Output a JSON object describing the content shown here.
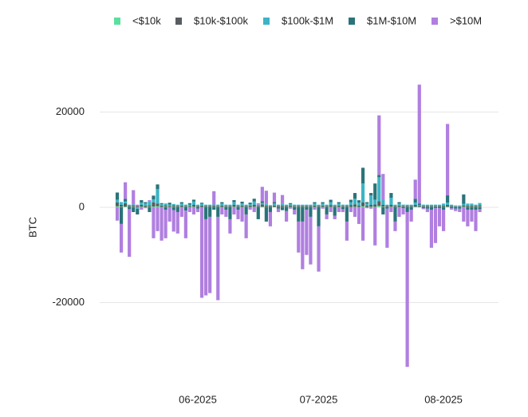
{
  "chart_data": {
    "type": "stacked_bar",
    "y_label": "BTC",
    "categories": [
      null,
      null,
      null,
      null,
      null,
      null,
      null,
      null,
      null,
      null,
      null,
      null,
      null,
      null,
      null,
      null,
      null,
      null,
      null,
      null,
      "06-2025",
      null,
      null,
      null,
      null,
      null,
      null,
      null,
      null,
      null,
      null,
      null,
      null,
      null,
      null,
      null,
      null,
      null,
      null,
      null,
      null,
      null,
      null,
      null,
      null,
      null,
      null,
      null,
      null,
      null,
      "07-2025",
      null,
      null,
      null,
      null,
      null,
      null,
      null,
      null,
      null,
      null,
      null,
      null,
      null,
      null,
      null,
      null,
      null,
      null,
      null,
      null,
      null,
      null,
      null,
      null,
      null,
      null,
      null,
      null,
      null,
      null,
      "08-2025",
      null,
      null,
      null,
      null,
      null,
      null,
      null,
      null,
      null
    ],
    "ylim": [
      -35000,
      28000
    ],
    "yticks": [
      -20000,
      0,
      20000
    ],
    "grid": true,
    "legend": "top",
    "series": [
      {
        "name": "<$10k",
        "color": "#5cdf9e",
        "values": [
          200,
          100,
          150,
          50,
          100,
          50,
          100,
          80,
          100,
          150,
          200,
          80,
          100,
          60,
          100,
          50,
          80,
          60,
          70,
          100,
          50,
          60,
          50,
          50,
          80,
          60,
          80,
          60,
          50,
          100,
          50,
          80,
          50,
          70,
          100,
          50,
          100,
          80,
          50,
          80,
          50,
          80,
          50,
          80,
          60,
          50,
          50,
          50,
          50,
          80,
          50,
          80,
          50,
          80,
          50,
          80,
          60,
          50,
          80,
          100,
          80,
          200,
          80,
          100,
          100,
          300,
          100,
          50,
          100,
          50,
          80,
          60,
          50,
          50,
          100,
          50,
          60,
          50,
          50,
          60,
          50,
          80,
          100,
          50,
          50,
          50,
          100,
          80,
          80,
          50,
          100
        ]
      },
      {
        "name": "$10k-$100k",
        "color": "#595d60",
        "values": [
          800,
          400,
          700,
          200,
          300,
          200,
          400,
          300,
          300,
          900,
          600,
          300,
          300,
          200,
          300,
          200,
          300,
          200,
          200,
          400,
          200,
          300,
          200,
          200,
          300,
          200,
          300,
          200,
          200,
          400,
          200,
          300,
          200,
          300,
          400,
          200,
          500,
          300,
          200,
          300,
          200,
          300,
          200,
          300,
          200,
          200,
          200,
          200,
          200,
          300,
          200,
          300,
          200,
          400,
          200,
          300,
          200,
          200,
          400,
          500,
          300,
          800,
          300,
          400,
          500,
          1000,
          400,
          200,
          400,
          200,
          300,
          200,
          200,
          200,
          400,
          200,
          200,
          200,
          200,
          200,
          200,
          300,
          400,
          200,
          150,
          150,
          300,
          300,
          300,
          200,
          300
        ]
      },
      {
        "name": "$100k-$1M",
        "color": "#3cb4c6",
        "values": [
          600,
          600,
          400,
          300,
          200,
          -300,
          500,
          400,
          900,
          600,
          3000,
          300,
          400,
          300,
          300,
          300,
          400,
          300,
          300,
          700,
          300,
          400,
          300,
          300,
          200,
          300,
          400,
          300,
          300,
          600,
          300,
          400,
          300,
          300,
          700,
          300,
          300,
          400,
          200,
          400,
          300,
          400,
          300,
          300,
          300,
          300,
          300,
          300,
          300,
          400,
          300,
          400,
          300,
          600,
          300,
          400,
          300,
          300,
          600,
          1200,
          600,
          4000,
          400,
          2000,
          1000,
          5000,
          1000,
          300,
          1500,
          300,
          400,
          300,
          300,
          300,
          500,
          200,
          300,
          300,
          300,
          300,
          300,
          400,
          500,
          300,
          200,
          200,
          300,
          400,
          400,
          300,
          500
        ]
      },
      {
        "name": "$1M-$10M",
        "color": "#2a7479",
        "values": [
          1500,
          -3500,
          500,
          -400,
          -1000,
          -1200,
          500,
          300,
          -1000,
          800,
          1000,
          200,
          -500,
          400,
          -600,
          -1000,
          300,
          -700,
          300,
          400,
          -300,
          200,
          -2500,
          -2000,
          -500,
          -2000,
          300,
          -500,
          -2500,
          400,
          -500,
          400,
          -1500,
          300,
          600,
          -2500,
          400,
          -3000,
          -1000,
          300,
          -300,
          -600,
          -800,
          200,
          -500,
          -3000,
          -3000,
          -500,
          -2000,
          300,
          -4000,
          300,
          -1500,
          500,
          -1800,
          300,
          -400,
          -3000,
          500,
          1200,
          500,
          3300,
          300,
          500,
          3400,
          500,
          -1500,
          -300,
          1000,
          -3000,
          300,
          -200,
          -1000,
          -500,
          800,
          300,
          -200,
          -300,
          -500,
          -200,
          -200,
          -500,
          1500,
          -200,
          -300,
          -300,
          2000,
          -500,
          -500,
          -500,
          -400
        ]
      },
      {
        "name": ">$10M",
        "color": "#b07fe0",
        "values": [
          -2800,
          -6000,
          3500,
          -10000,
          3000,
          300,
          -500,
          -200,
          200,
          -6500,
          -5000,
          -7000,
          -6000,
          -3000,
          -4500,
          -4500,
          -2000,
          -5800,
          -1000,
          -1500,
          -700,
          -19000,
          -16000,
          -16000,
          2800,
          -17500,
          -1500,
          -1500,
          -3000,
          -1500,
          -2000,
          -3000,
          -5000,
          -500,
          -1000,
          300,
          3000,
          2700,
          -3000,
          2000,
          -700,
          1800,
          -2200,
          -300,
          -1000,
          -6500,
          -10000,
          -9500,
          -10000,
          -500,
          -9500,
          -300,
          -1000,
          -1000,
          -700,
          -1000,
          -600,
          -4000,
          -1000,
          -2000,
          -3500,
          -7000,
          -200,
          -300,
          -8000,
          12500,
          5500,
          -8200,
          -1000,
          -2000,
          -2000,
          -1300,
          -32500,
          -2500,
          4000,
          25000,
          -200,
          -700,
          -8000,
          -7300,
          -3800,
          -4500,
          15000,
          -300,
          -500,
          -700,
          -3000,
          -3500,
          -2500,
          -4500,
          -600
        ]
      }
    ]
  }
}
